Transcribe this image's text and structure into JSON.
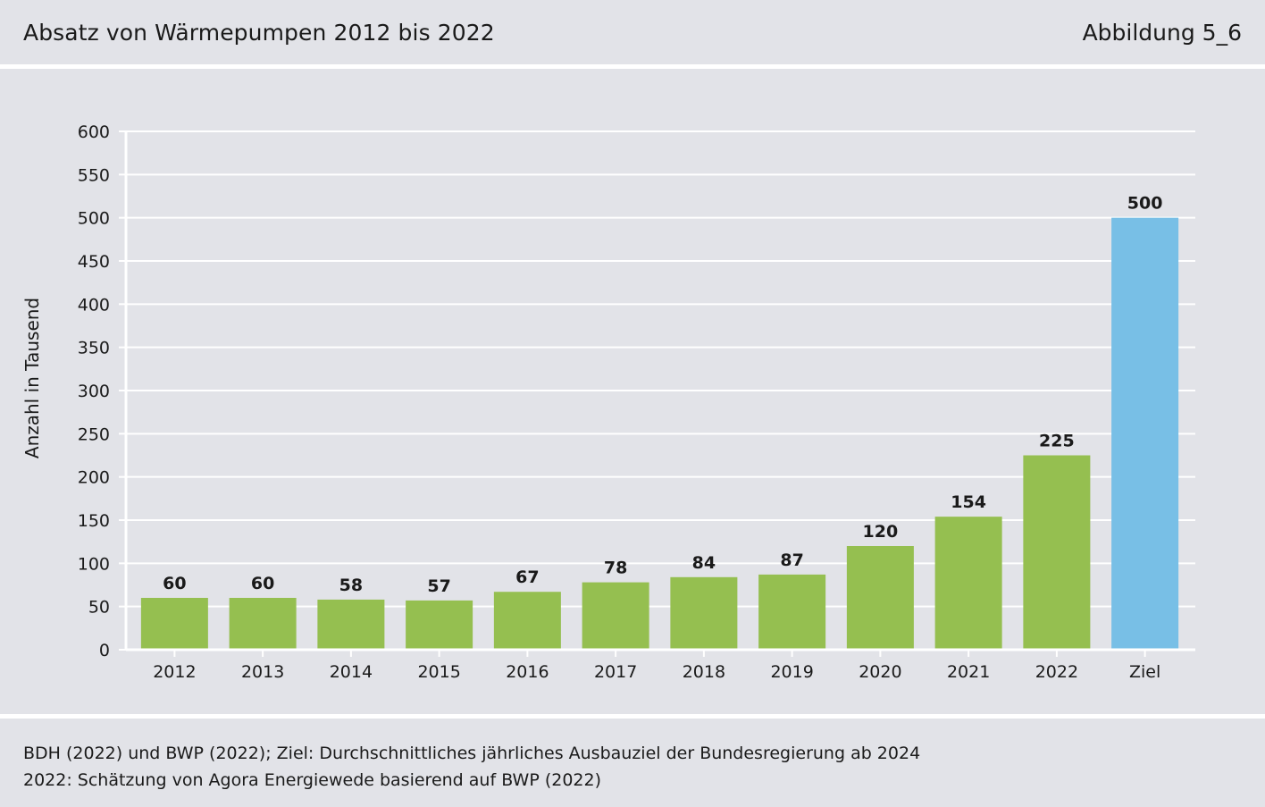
{
  "header": {
    "title": "Absatz von Wärmepumpen 2012 bis 2022",
    "figure_label": "Abbildung 5_6"
  },
  "footer": {
    "source_line": "BDH (2022) und BWP (2022); Ziel: Durchschnittliches jährliches Ausbauziel der Bundesregierung ab 2024",
    "note_line": "2022: Schätzung von Agora Energiewede basierend auf BWP (2022)"
  },
  "colors": {
    "green": "#95bf50",
    "blue": "#78bfe6",
    "grid": "#ffffff",
    "axis": "#ffffff"
  },
  "chart_data": {
    "type": "bar",
    "title": "Absatz von Wärmepumpen 2012 bis 2022",
    "xlabel": "",
    "ylabel": "Anzahl in Tausend",
    "ylim": [
      0,
      600
    ],
    "yticks": [
      0,
      50,
      100,
      150,
      200,
      250,
      300,
      350,
      400,
      450,
      500,
      550,
      600
    ],
    "grid": true,
    "categories": [
      "2012",
      "2013",
      "2014",
      "2015",
      "2016",
      "2017",
      "2018",
      "2019",
      "2020",
      "2021",
      "2022",
      "Ziel"
    ],
    "values": [
      60,
      60,
      58,
      57,
      67,
      78,
      84,
      87,
      120,
      154,
      225,
      500
    ],
    "value_labels": [
      "60",
      "60",
      "58",
      "57",
      "67",
      "78",
      "84",
      "87",
      "120",
      "154",
      "225",
      "500"
    ],
    "highlight": [
      "green",
      "green",
      "green",
      "green",
      "green",
      "green",
      "green",
      "green",
      "green",
      "green",
      "green",
      "blue"
    ]
  }
}
